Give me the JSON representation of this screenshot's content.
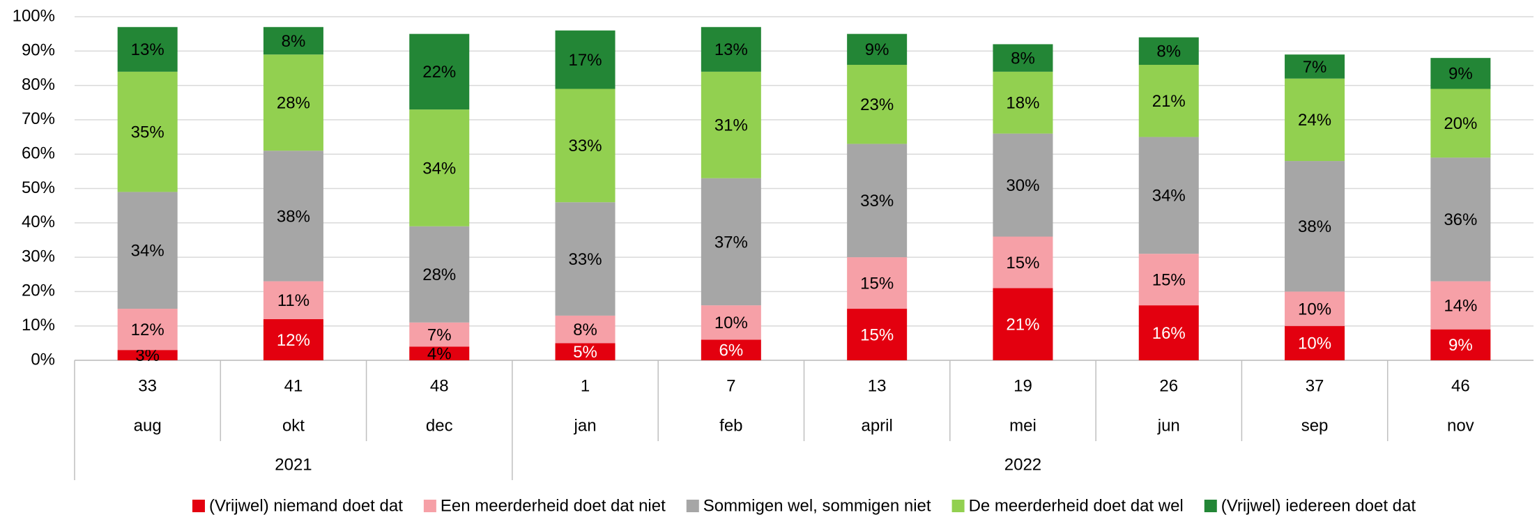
{
  "chart_data": {
    "type": "stacked_bar",
    "groups": [
      {
        "label": "2021",
        "categories": [
          {
            "week": "33",
            "month": "aug"
          },
          {
            "week": "41",
            "month": "okt"
          },
          {
            "week": "48",
            "month": "dec"
          }
        ]
      },
      {
        "label": "2022",
        "categories": [
          {
            "week": "1",
            "month": "jan"
          },
          {
            "week": "7",
            "month": "feb"
          },
          {
            "week": "13",
            "month": "april"
          },
          {
            "week": "19",
            "month": "mei"
          },
          {
            "week": "26",
            "month": "jun"
          },
          {
            "week": "37",
            "month": "sep"
          },
          {
            "week": "46",
            "month": "nov"
          }
        ]
      }
    ],
    "series": [
      {
        "name": "(Vrijwel) niemand doet dat",
        "color": "#e3000f",
        "values": [
          3,
          12,
          4,
          5,
          6,
          15,
          21,
          16,
          10,
          9
        ],
        "value_labels": [
          "3%",
          "12%",
          "4%",
          "5%",
          "6%",
          "15%",
          "21%",
          "16%",
          "10%",
          "9%"
        ]
      },
      {
        "name": "Een meerderheid doet dat niet",
        "color": "#f6a0a7",
        "values": [
          12,
          11,
          7,
          8,
          10,
          15,
          15,
          15,
          10,
          14
        ],
        "value_labels": [
          "12%",
          "11%",
          "7%",
          "8%",
          "10%",
          "15%",
          "15%",
          "15%",
          "10%",
          "14%"
        ]
      },
      {
        "name": "Sommigen wel, sommigen niet",
        "color": "#a6a6a6",
        "values": [
          34,
          38,
          28,
          33,
          37,
          33,
          30,
          34,
          38,
          36
        ],
        "value_labels": [
          "34%",
          "38%",
          "28%",
          "33%",
          "37%",
          "33%",
          "30%",
          "34%",
          "38%",
          "36%"
        ]
      },
      {
        "name": "De meerderheid doet dat wel",
        "color": "#92d050",
        "values": [
          35,
          28,
          34,
          33,
          31,
          23,
          18,
          21,
          24,
          20
        ],
        "value_labels": [
          "35%",
          "28%",
          "34%",
          "33%",
          "31%",
          "23%",
          "18%",
          "21%",
          "24%",
          "20%"
        ]
      },
      {
        "name": "(Vrijwel) iedereen doet dat",
        "color": "#238636",
        "values": [
          13,
          8,
          22,
          17,
          13,
          9,
          8,
          8,
          7,
          9
        ],
        "value_labels": [
          "13%",
          "8%",
          "22%",
          "17%",
          "13%",
          "9%",
          "8%",
          "8%",
          "7%",
          "9%"
        ]
      }
    ],
    "ylim": [
      0,
      100
    ],
    "yticks": [
      {
        "value": 0,
        "label": "0%"
      },
      {
        "value": 10,
        "label": "10%"
      },
      {
        "value": 20,
        "label": "20%"
      },
      {
        "value": 30,
        "label": "30%"
      },
      {
        "value": 40,
        "label": "40%"
      },
      {
        "value": 50,
        "label": "50%"
      },
      {
        "value": 60,
        "label": "60%"
      },
      {
        "value": 70,
        "label": "70%"
      },
      {
        "value": 80,
        "label": "80%"
      },
      {
        "value": 90,
        "label": "90%"
      },
      {
        "value": 100,
        "label": "100%"
      }
    ],
    "grid": true,
    "legend": "bottom"
  }
}
